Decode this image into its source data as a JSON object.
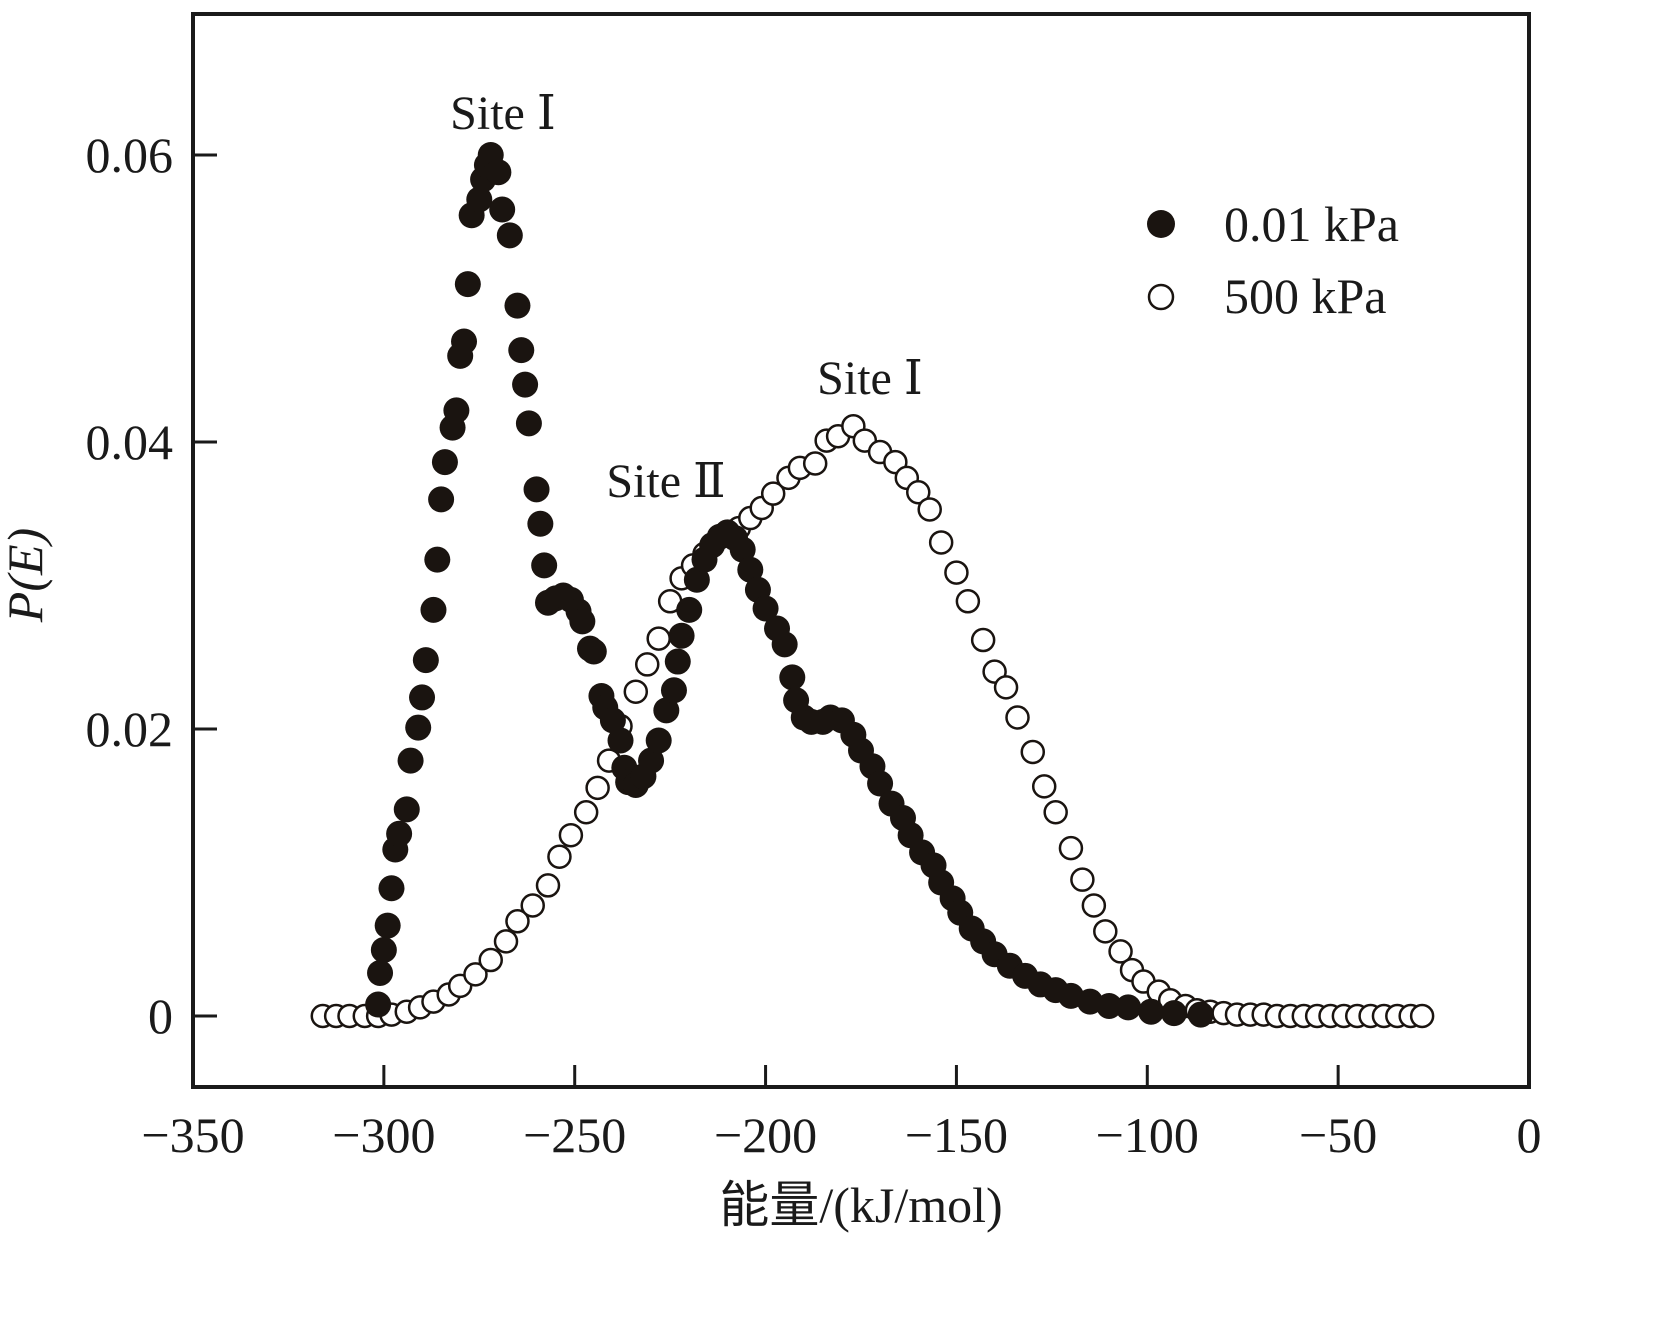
{
  "chart_data": {
    "type": "scatter",
    "title": "",
    "xlabel": "能量/(kJ/mol)",
    "ylabel": "P(E)",
    "xlim": [
      -350,
      0
    ],
    "ylim": [
      -0.005,
      0.07
    ],
    "xticks": [
      -350,
      -300,
      -250,
      -200,
      -150,
      -100,
      -50,
      0
    ],
    "xtick_labels": [
      "−350",
      "−300",
      "−250",
      "−200",
      "−150",
      "−100",
      "−50",
      "0"
    ],
    "yticks": [
      0,
      0.02,
      0.04,
      0.06
    ],
    "ytick_labels": [
      "0",
      "0.02",
      "0.04",
      "0.06"
    ],
    "grid": false,
    "legend": {
      "position": "top-right",
      "entries": [
        "0.01 kPa",
        "500 kPa"
      ]
    },
    "annotations": [
      {
        "text": "Site Ⅰ",
        "x": -272,
        "y": 0.063,
        "series": "0.01 kPa"
      },
      {
        "text": "Site Ⅱ",
        "x": -217,
        "y": 0.0375,
        "series": "0.01 kPa"
      },
      {
        "text": "Site Ⅰ",
        "x": -177,
        "y": 0.0445,
        "series": "500 kPa"
      }
    ],
    "series": [
      {
        "name": "0.01 kPa",
        "marker": "filled-circle",
        "color": "#1a1410",
        "x": [
          -301.5,
          -301,
          -300,
          -299,
          -298,
          -297,
          -296,
          -294,
          -293,
          -291,
          -290,
          -289,
          -287,
          -286,
          -285,
          -284,
          -282,
          -281,
          -280,
          -279,
          -278,
          -277,
          -275,
          -274,
          -273,
          -272,
          -270,
          -269,
          -267,
          -265,
          -264,
          -263,
          -262,
          -260,
          -259,
          -258,
          -257,
          -255,
          -253,
          -251,
          -249,
          -248,
          -246,
          -245,
          -243,
          -242,
          -240,
          -238,
          -237,
          -236,
          -234,
          -232,
          -230,
          -228,
          -226,
          -224,
          -223,
          -222,
          -220,
          -218,
          -216,
          -214,
          -212,
          -210,
          -208,
          -206,
          -204,
          -202,
          -200,
          -197,
          -195,
          -193,
          -192,
          -190,
          -188,
          -185,
          -183,
          -180,
          -177,
          -175,
          -172,
          -170,
          -167,
          -164,
          -162,
          -159,
          -156,
          -154,
          -151,
          -149,
          -146,
          -143,
          -140,
          -136,
          -132,
          -128,
          -124,
          -120,
          -115,
          -110,
          -105,
          -99,
          -93,
          -86
        ],
        "y": [
          0.0008,
          0.003,
          0.0046,
          0.0063,
          0.0089,
          0.0116,
          0.0127,
          0.0144,
          0.0178,
          0.0201,
          0.0222,
          0.0248,
          0.0283,
          0.0318,
          0.036,
          0.0386,
          0.041,
          0.0422,
          0.046,
          0.047,
          0.051,
          0.0558,
          0.0569,
          0.0583,
          0.0593,
          0.06,
          0.0588,
          0.0562,
          0.0544,
          0.0495,
          0.0464,
          0.044,
          0.0413,
          0.0367,
          0.0343,
          0.0314,
          0.0288,
          0.0291,
          0.0293,
          0.029,
          0.0282,
          0.0275,
          0.0256,
          0.0254,
          0.0223,
          0.0215,
          0.0206,
          0.0192,
          0.0173,
          0.0163,
          0.0161,
          0.0167,
          0.0178,
          0.0192,
          0.0213,
          0.0227,
          0.0247,
          0.0265,
          0.0283,
          0.0304,
          0.0318,
          0.0328,
          0.0334,
          0.0337,
          0.0333,
          0.0325,
          0.0311,
          0.0297,
          0.0284,
          0.027,
          0.0259,
          0.0236,
          0.022,
          0.0208,
          0.0205,
          0.0205,
          0.0208,
          0.0206,
          0.0196,
          0.0185,
          0.0174,
          0.0162,
          0.0148,
          0.0138,
          0.0126,
          0.0114,
          0.0105,
          0.0093,
          0.0082,
          0.0072,
          0.0061,
          0.0052,
          0.0043,
          0.0035,
          0.0028,
          0.0022,
          0.0018,
          0.0014,
          0.001,
          0.0007,
          0.0006,
          0.0003,
          0.0002,
          0.0001
        ]
      },
      {
        "name": "500 kPa",
        "marker": "open-circle",
        "color": "#1a1410",
        "x": [
          -316,
          -312.5,
          -309,
          -305,
          -301.5,
          -298,
          -294,
          -290.5,
          -287,
          -283,
          -280,
          -276,
          -272,
          -268,
          -265,
          -261,
          -257,
          -254,
          -251,
          -247,
          -244,
          -241,
          -238,
          -234,
          -231,
          -228,
          -225,
          -222,
          -219,
          -216,
          -214,
          -210,
          -207,
          -204,
          -201,
          -198,
          -194,
          -191,
          -187,
          -184,
          -181,
          -177,
          -174,
          -170,
          -166,
          -163,
          -160,
          -157,
          -154,
          -150,
          -147,
          -143,
          -140,
          -137,
          -134,
          -130,
          -127,
          -124,
          -120,
          -117,
          -114,
          -111,
          -107,
          -104,
          -101,
          -97,
          -94,
          -90,
          -87,
          -83.5,
          -80,
          -76.5,
          -73,
          -69.5,
          -66,
          -62.5,
          -59,
          -55.5,
          -52,
          -48.5,
          -45,
          -41.5,
          -38,
          -34.5,
          -31,
          -28
        ],
        "y": [
          0,
          0,
          0,
          0,
          0,
          0.0001,
          0.0003,
          0.0006,
          0.001,
          0.0015,
          0.0021,
          0.0029,
          0.0039,
          0.0052,
          0.0066,
          0.0077,
          0.0091,
          0.0111,
          0.0126,
          0.0142,
          0.0159,
          0.0178,
          0.0202,
          0.0226,
          0.0245,
          0.0263,
          0.0289,
          0.0305,
          0.0314,
          0.0322,
          0.0328,
          0.0335,
          0.034,
          0.0347,
          0.0354,
          0.0364,
          0.0375,
          0.0382,
          0.0385,
          0.0401,
          0.0404,
          0.0411,
          0.0401,
          0.0393,
          0.0386,
          0.0375,
          0.0365,
          0.0353,
          0.033,
          0.0309,
          0.0289,
          0.0262,
          0.024,
          0.0229,
          0.0208,
          0.0184,
          0.016,
          0.0142,
          0.0117,
          0.0095,
          0.0077,
          0.0059,
          0.0045,
          0.0032,
          0.0024,
          0.0017,
          0.0011,
          0.0007,
          0.0004,
          0.0003,
          0.0002,
          0.0001,
          0.0001,
          0.0001,
          0,
          0,
          0,
          0,
          0,
          0,
          0,
          0,
          0,
          0,
          0,
          0
        ]
      }
    ]
  }
}
